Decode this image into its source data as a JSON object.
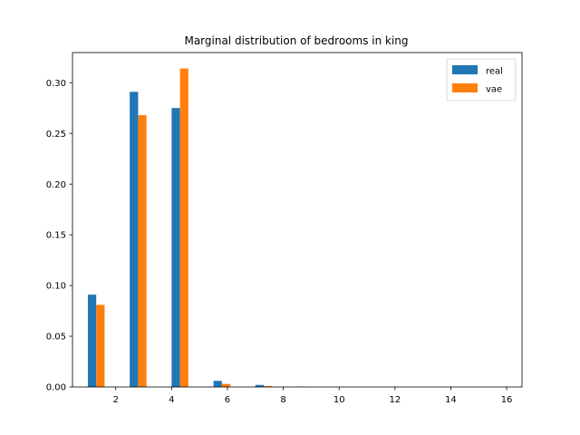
{
  "chart_data": {
    "type": "bar",
    "title": "Marginal distribution of bedrooms in king",
    "xlabel": "",
    "ylabel": "",
    "xlim": [
      0.45,
      16.55
    ],
    "ylim": [
      0,
      0.3297
    ],
    "xticks": [
      2,
      4,
      6,
      8,
      10,
      12,
      14,
      16
    ],
    "yticks": [
      0.0,
      0.05,
      0.1,
      0.15,
      0.2,
      0.25,
      0.3
    ],
    "legend_position": "top-right",
    "bins": [
      [
        1.0,
        1.6
      ],
      [
        2.5,
        3.1
      ],
      [
        4.0,
        4.6
      ],
      [
        5.5,
        6.1
      ],
      [
        7.0,
        7.6
      ],
      [
        8.5,
        9.1
      ],
      [
        10.0,
        10.6
      ],
      [
        11.5,
        12.1
      ],
      [
        13.0,
        13.6
      ],
      [
        14.5,
        15.1
      ]
    ],
    "series": [
      {
        "name": "real",
        "color": "#1f77b4",
        "values": [
          0.091,
          0.291,
          0.275,
          0.006,
          0.002,
          0.0003,
          0.0001,
          0.0,
          0.0,
          0.0
        ]
      },
      {
        "name": "vae",
        "color": "#ff7f0e",
        "values": [
          0.081,
          0.268,
          0.314,
          0.003,
          0.001,
          0.0,
          0.0,
          0.0,
          0.0,
          0.0
        ]
      }
    ]
  }
}
